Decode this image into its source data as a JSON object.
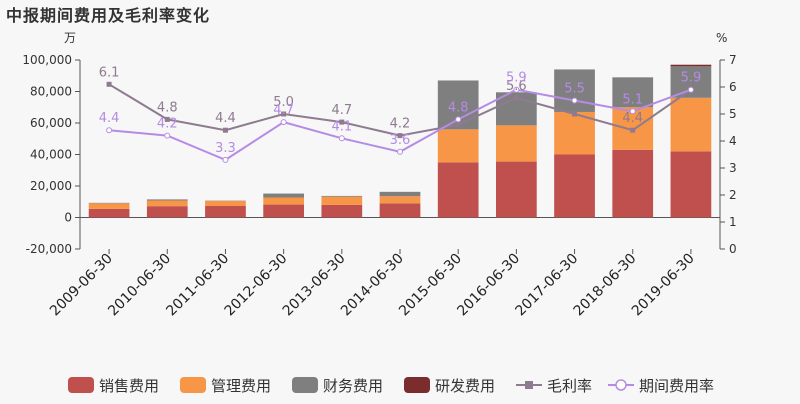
{
  "title": "中报期间费用及毛利率变化",
  "chart_data": {
    "type": "bar",
    "stacked": true,
    "categories": [
      "2009-06-30",
      "2010-06-30",
      "2011-06-30",
      "2012-06-30",
      "2013-06-30",
      "2014-06-30",
      "2015-06-30",
      "2016-06-30",
      "2017-06-30",
      "2018-06-30",
      "2019-06-30"
    ],
    "y_left": {
      "unit": "万",
      "ylim": [
        -20000,
        100000
      ],
      "ticks": [
        -20000,
        0,
        20000,
        40000,
        60000,
        80000,
        100000
      ],
      "tick_labels": [
        "-20,000",
        "0",
        "20,000",
        "40,000",
        "60,000",
        "80,000",
        "100,000"
      ]
    },
    "y_right": {
      "unit": "%",
      "ylim": [
        0,
        7
      ],
      "ticks": [
        0,
        1,
        2,
        3,
        4,
        5,
        6,
        7
      ],
      "tick_labels": [
        "0",
        "1",
        "2",
        "3",
        "4",
        "5",
        "6",
        "7"
      ]
    },
    "bar_series": [
      {
        "name": "销售费用",
        "color": "#c0504d",
        "values": [
          5500,
          7200,
          7300,
          8200,
          8000,
          9000,
          35000,
          35500,
          40000,
          43000,
          42000
        ]
      },
      {
        "name": "管理费用",
        "color": "#f79646",
        "values": [
          3500,
          3600,
          3200,
          4500,
          5200,
          4500,
          21000,
          23000,
          27000,
          27000,
          34000
        ]
      },
      {
        "name": "财务费用",
        "color": "#7f7f7f",
        "values": [
          300,
          700,
          200,
          2500,
          500,
          2800,
          31000,
          21000,
          27000,
          19000,
          20000
        ]
      },
      {
        "name": "研发费用",
        "color": "#7b2d2d",
        "values": [
          0,
          0,
          0,
          0,
          0,
          0,
          0,
          0,
          0,
          0,
          1000
        ]
      }
    ],
    "line_series": [
      {
        "name": "毛利率",
        "color": "#8e7b90",
        "axis": "right",
        "values": [
          6.1,
          4.8,
          4.4,
          5.0,
          4.7,
          4.2,
          4.6,
          5.6,
          5.0,
          4.4,
          5.9
        ],
        "labels": [
          "6.1",
          "4.8",
          "4.4",
          "5.0",
          "4.7",
          "4.2",
          "",
          "5.6",
          "",
          "4.4",
          ""
        ]
      },
      {
        "name": "期间费用率",
        "color": "#b58be6",
        "axis": "right",
        "values": [
          4.4,
          4.2,
          3.3,
          4.7,
          4.1,
          3.6,
          4.8,
          5.9,
          5.5,
          5.1,
          5.9
        ],
        "labels": [
          "4.4",
          "4.2",
          "3.3",
          "4.7",
          "4.1",
          "3.6",
          "4.8",
          "5.9",
          "5.5",
          "5.1",
          "5.9"
        ]
      }
    ],
    "grid": false,
    "legend_position": "bottom"
  }
}
